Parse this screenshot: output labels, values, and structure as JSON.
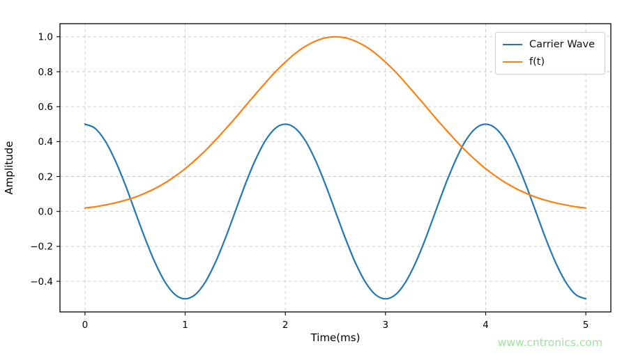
{
  "page": {
    "watermark": "www.cntronics.com",
    "watermark_color": "#9be49b",
    "background": "#ffffff",
    "frame_color": "#000000",
    "grid_color": "#c6c6c6"
  },
  "chart_data": {
    "type": "line",
    "title": "",
    "xlabel": "Time(ms)",
    "ylabel": "Amplitude",
    "grid": true,
    "legend": {
      "position": "upper right"
    },
    "xlim": [
      -0.25,
      5.25
    ],
    "ylim": [
      -0.575,
      1.075
    ],
    "xticks": [
      0,
      1,
      2,
      3,
      4,
      5
    ],
    "xtick_labels": [
      "0",
      "1",
      "2",
      "3",
      "4",
      "5"
    ],
    "ytick_values": [
      -0.4,
      -0.2,
      0.0,
      0.2,
      0.4,
      0.6,
      0.8,
      1.0
    ],
    "ytick_labels": [
      "−0.4",
      "−0.2",
      "0.0",
      "0.2",
      "0.4",
      "0.6",
      "0.8",
      "1.0"
    ],
    "x": [
      0,
      0.1,
      0.2,
      0.3,
      0.4,
      0.5,
      0.6,
      0.7,
      0.8,
      0.9,
      1,
      1.1,
      1.2,
      1.3,
      1.4,
      1.5,
      1.6,
      1.7,
      1.8,
      1.9,
      2,
      2.1,
      2.2,
      2.3,
      2.4,
      2.5,
      2.6,
      2.7,
      2.8,
      2.9,
      3,
      3.1,
      3.2,
      3.3,
      3.4,
      3.5,
      3.6,
      3.7,
      3.8,
      3.9,
      4,
      4.1,
      4.2,
      4.3,
      4.4,
      4.5,
      4.6,
      4.7,
      4.8,
      4.9,
      5
    ],
    "series": [
      {
        "name": "Carrier Wave",
        "color": "#1f77b4",
        "values": [
          0.5,
          0.476,
          0.405,
          0.294,
          0.155,
          0,
          -0.155,
          -0.294,
          -0.405,
          -0.476,
          -0.5,
          -0.476,
          -0.405,
          -0.294,
          -0.155,
          0,
          0.155,
          0.294,
          0.405,
          0.476,
          0.5,
          0.476,
          0.405,
          0.294,
          0.155,
          0,
          -0.155,
          -0.294,
          -0.405,
          -0.476,
          -0.5,
          -0.476,
          -0.405,
          -0.294,
          -0.155,
          0,
          0.155,
          0.294,
          0.405,
          0.476,
          0.5,
          0.476,
          0.405,
          0.294,
          0.155,
          0,
          -0.155,
          -0.294,
          -0.405,
          -0.476,
          -0.5
        ]
      },
      {
        "name": "f(t)",
        "color": "#ff7f0e",
        "values": [
          0.02,
          0.027,
          0.037,
          0.049,
          0.064,
          0.082,
          0.105,
          0.132,
          0.164,
          0.202,
          0.245,
          0.294,
          0.348,
          0.407,
          0.47,
          0.535,
          0.603,
          0.67,
          0.736,
          0.799,
          0.855,
          0.905,
          0.945,
          0.975,
          0.994,
          1,
          0.994,
          0.975,
          0.945,
          0.905,
          0.855,
          0.799,
          0.736,
          0.67,
          0.603,
          0.535,
          0.47,
          0.407,
          0.348,
          0.294,
          0.245,
          0.202,
          0.164,
          0.132,
          0.105,
          0.082,
          0.064,
          0.049,
          0.037,
          0.027,
          0.02
        ]
      }
    ]
  }
}
